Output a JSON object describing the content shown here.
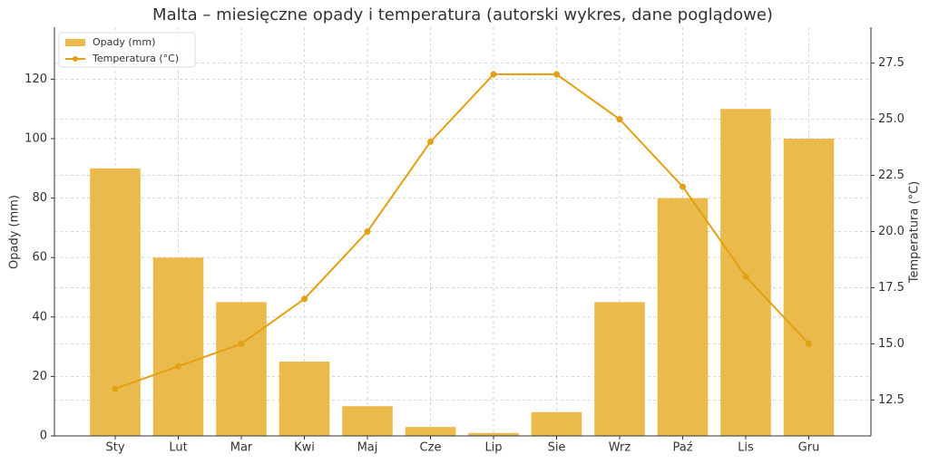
{
  "chart_data": {
    "type": "bar",
    "title": "Malta – miesięczne opady i temperatura (autorski wykres, dane poglądowe)",
    "y_label": "Opady (mm)",
    "y2_label": "Temperatura (°C)",
    "categories": [
      "Sty",
      "Lut",
      "Mar",
      "Kwi",
      "Maj",
      "Cze",
      "Lip",
      "Sie",
      "Wrz",
      "Paź",
      "Lis",
      "Gru"
    ],
    "series": [
      {
        "name": "Opady (mm)",
        "type": "bar",
        "color": "#ebba4d",
        "values": [
          90,
          60,
          45,
          25,
          10,
          3,
          1,
          8,
          45,
          80,
          110,
          100
        ]
      },
      {
        "name": "Temperatura (°C)",
        "type": "line",
        "axis": "y2",
        "color": "#e2a012",
        "values": [
          13,
          14,
          15,
          17,
          20,
          24,
          27,
          27,
          25,
          22,
          18,
          15
        ]
      }
    ],
    "ylim": [
      0,
      137.5
    ],
    "yticks": [
      0,
      20,
      40,
      60,
      80,
      100,
      120
    ],
    "y2lim": [
      10.9,
      29.1
    ],
    "y2ticks": [
      12.5,
      {
        "value": 15,
        "label": "15.0"
      },
      17.5,
      {
        "value": 20,
        "label": "20.0"
      },
      22.5,
      {
        "value": 25,
        "label": "25.0"
      },
      27.5
    ],
    "grid": true,
    "legend": "upper left"
  }
}
